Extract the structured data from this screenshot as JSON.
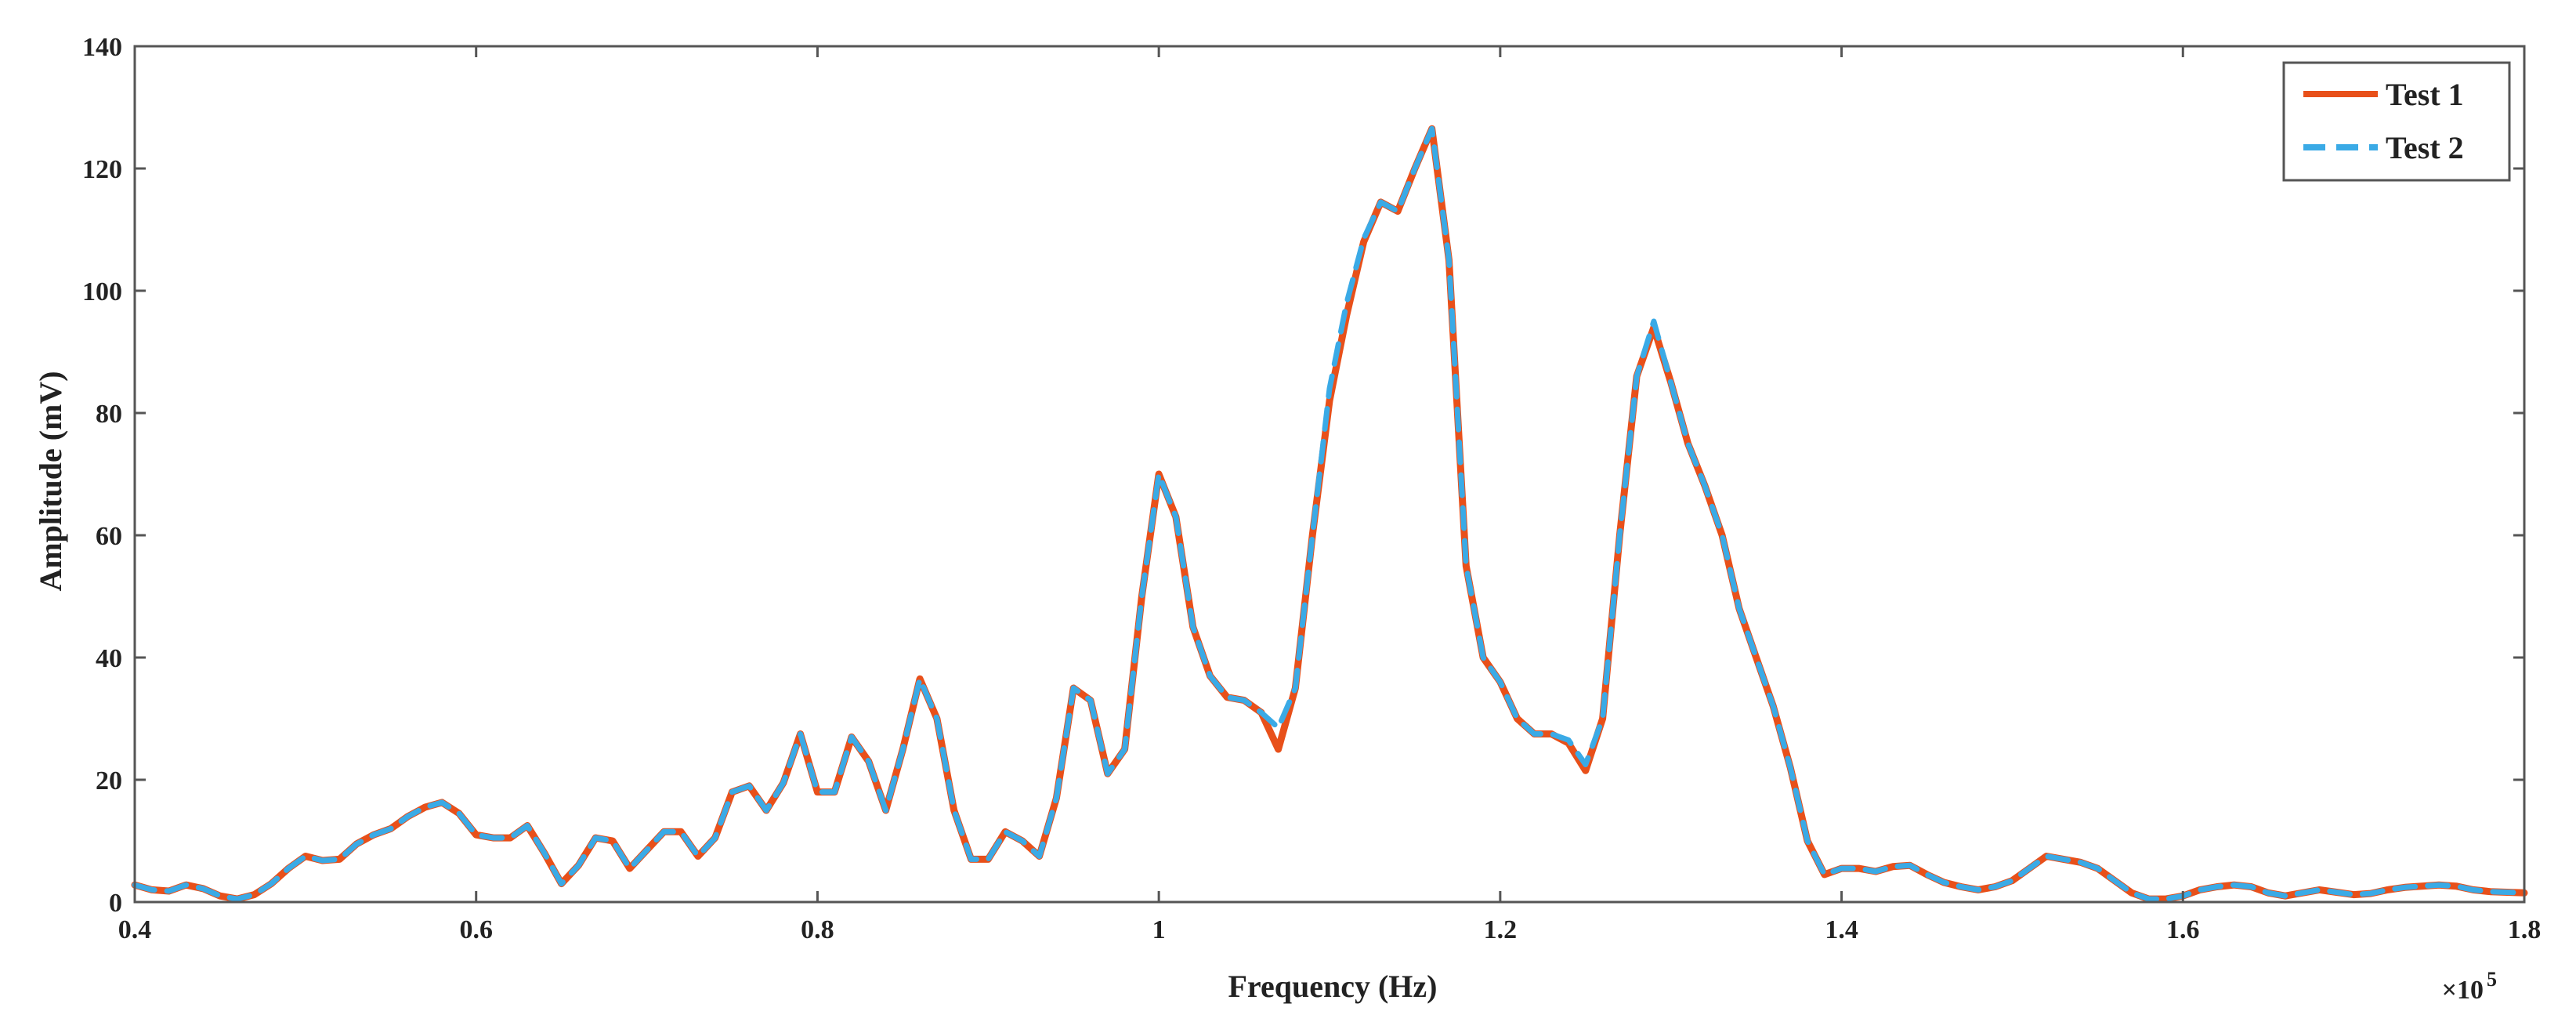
{
  "chart_data": {
    "type": "line",
    "title": "",
    "xlabel": "Frequency (Hz)",
    "ylabel": "Amplitude (mV)",
    "x_multiplier_base": "×10",
    "x_multiplier_exp": "5",
    "xlim": [
      0.4,
      1.8
    ],
    "ylim": [
      0,
      140
    ],
    "x_ticks": [
      0.4,
      0.6,
      0.8,
      1,
      1.2,
      1.4,
      1.6,
      1.8
    ],
    "x_tick_labels": [
      "0.4",
      "0.6",
      "0.8",
      "1",
      "1.2",
      "1.4",
      "1.6",
      "1.8"
    ],
    "y_ticks": [
      0,
      20,
      40,
      60,
      80,
      100,
      120,
      140
    ],
    "y_tick_labels": [
      "0",
      "20",
      "40",
      "60",
      "80",
      "100",
      "120",
      "140"
    ],
    "grid": false,
    "legend_position": "top-right",
    "series": [
      {
        "name": "Test 1",
        "color": "#e8501a",
        "style": "solid",
        "x": [
          0.4,
          0.41,
          0.42,
          0.43,
          0.44,
          0.45,
          0.46,
          0.47,
          0.48,
          0.49,
          0.5,
          0.51,
          0.52,
          0.53,
          0.54,
          0.55,
          0.56,
          0.57,
          0.58,
          0.59,
          0.6,
          0.61,
          0.62,
          0.63,
          0.64,
          0.65,
          0.66,
          0.67,
          0.68,
          0.69,
          0.7,
          0.71,
          0.72,
          0.73,
          0.74,
          0.75,
          0.76,
          0.77,
          0.78,
          0.79,
          0.8,
          0.81,
          0.82,
          0.83,
          0.84,
          0.85,
          0.86,
          0.87,
          0.88,
          0.89,
          0.9,
          0.91,
          0.92,
          0.93,
          0.94,
          0.95,
          0.96,
          0.97,
          0.98,
          0.99,
          1.0,
          1.01,
          1.02,
          1.03,
          1.04,
          1.05,
          1.06,
          1.07,
          1.08,
          1.09,
          1.1,
          1.11,
          1.12,
          1.13,
          1.14,
          1.15,
          1.16,
          1.17,
          1.18,
          1.19,
          1.2,
          1.21,
          1.22,
          1.23,
          1.24,
          1.25,
          1.26,
          1.27,
          1.28,
          1.29,
          1.3,
          1.31,
          1.32,
          1.33,
          1.34,
          1.35,
          1.36,
          1.37,
          1.38,
          1.39,
          1.4,
          1.41,
          1.42,
          1.43,
          1.44,
          1.45,
          1.46,
          1.47,
          1.48,
          1.49,
          1.5,
          1.51,
          1.52,
          1.53,
          1.54,
          1.55,
          1.56,
          1.57,
          1.58,
          1.59,
          1.6,
          1.61,
          1.62,
          1.63,
          1.64,
          1.65,
          1.66,
          1.67,
          1.68,
          1.69,
          1.7,
          1.71,
          1.72,
          1.73,
          1.74,
          1.75,
          1.76,
          1.77,
          1.78,
          1.79,
          1.8
        ],
        "y": [
          2.8,
          2.0,
          1.8,
          2.8,
          2.2,
          1.0,
          0.5,
          1.2,
          3.0,
          5.5,
          7.5,
          6.8,
          7.0,
          9.5,
          11.0,
          12.0,
          14.0,
          15.5,
          16.3,
          14.5,
          11.0,
          10.5,
          10.5,
          12.5,
          8.0,
          3.0,
          6.0,
          10.5,
          10.0,
          5.5,
          8.5,
          11.5,
          11.5,
          7.5,
          10.5,
          18.0,
          19.0,
          15.0,
          19.5,
          27.5,
          18.0,
          18.0,
          27.0,
          23.0,
          15.0,
          25.0,
          36.5,
          30.0,
          15.0,
          7.0,
          7.0,
          11.5,
          10.0,
          7.5,
          17.0,
          35.0,
          33.0,
          21.0,
          25.0,
          50.0,
          70.0,
          63.0,
          45.0,
          37.0,
          33.5,
          33.0,
          31.0,
          25.0,
          35.0,
          60.0,
          82.0,
          96.0,
          108.0,
          114.5,
          113.0,
          120.0,
          126.5,
          105.0,
          55.0,
          40.0,
          36.0,
          30.0,
          27.5,
          27.5,
          26.0,
          21.5,
          30.0,
          60.0,
          86.0,
          94.0,
          85.0,
          75.0,
          68.0,
          60.0,
          48.0,
          40.0,
          32.0,
          22.0,
          10.0,
          4.5,
          5.5,
          5.5,
          5.0,
          5.8,
          6.0,
          4.5,
          3.2,
          2.5,
          2.0,
          2.5,
          3.5,
          5.5,
          7.5,
          7.0,
          6.5,
          5.5,
          3.5,
          1.5,
          0.5,
          0.5,
          1.0,
          2.0,
          2.5,
          2.8,
          2.5,
          1.5,
          1.0,
          1.5,
          2.0,
          1.6,
          1.2,
          1.4,
          2.0,
          2.4,
          2.6,
          2.8,
          2.6,
          2.0,
          1.7,
          1.6,
          1.5
        ]
      },
      {
        "name": "Test 2",
        "color": "#3aaae6",
        "style": "dashed",
        "x": [
          0.4,
          0.41,
          0.42,
          0.43,
          0.44,
          0.45,
          0.46,
          0.47,
          0.48,
          0.49,
          0.5,
          0.51,
          0.52,
          0.53,
          0.54,
          0.55,
          0.56,
          0.57,
          0.58,
          0.59,
          0.6,
          0.61,
          0.62,
          0.63,
          0.64,
          0.65,
          0.66,
          0.67,
          0.68,
          0.69,
          0.7,
          0.71,
          0.72,
          0.73,
          0.74,
          0.75,
          0.76,
          0.77,
          0.78,
          0.79,
          0.8,
          0.81,
          0.82,
          0.83,
          0.84,
          0.85,
          0.86,
          0.87,
          0.88,
          0.89,
          0.9,
          0.91,
          0.92,
          0.93,
          0.94,
          0.95,
          0.96,
          0.97,
          0.98,
          0.99,
          1.0,
          1.01,
          1.02,
          1.03,
          1.04,
          1.05,
          1.06,
          1.07,
          1.08,
          1.09,
          1.1,
          1.11,
          1.12,
          1.13,
          1.14,
          1.15,
          1.16,
          1.17,
          1.18,
          1.19,
          1.2,
          1.21,
          1.22,
          1.23,
          1.24,
          1.25,
          1.26,
          1.27,
          1.28,
          1.29,
          1.3,
          1.31,
          1.32,
          1.33,
          1.34,
          1.35,
          1.36,
          1.37,
          1.38,
          1.39,
          1.4,
          1.41,
          1.42,
          1.43,
          1.44,
          1.45,
          1.46,
          1.47,
          1.48,
          1.49,
          1.5,
          1.51,
          1.52,
          1.53,
          1.54,
          1.55,
          1.56,
          1.57,
          1.58,
          1.59,
          1.6,
          1.61,
          1.62,
          1.63,
          1.64,
          1.65,
          1.66,
          1.67,
          1.68,
          1.69,
          1.7,
          1.71,
          1.72,
          1.73,
          1.74,
          1.75,
          1.76,
          1.77,
          1.78,
          1.79,
          1.8
        ],
        "y": [
          2.8,
          2.0,
          1.8,
          2.8,
          2.2,
          1.0,
          0.5,
          1.2,
          3.0,
          5.5,
          7.5,
          6.8,
          7.0,
          9.5,
          11.0,
          12.0,
          14.0,
          15.5,
          16.3,
          14.5,
          11.0,
          10.5,
          10.5,
          12.5,
          8.0,
          3.0,
          6.0,
          10.5,
          10.0,
          5.5,
          8.5,
          11.5,
          11.5,
          7.5,
          10.5,
          18.0,
          19.0,
          15.0,
          19.5,
          27.5,
          18.0,
          18.0,
          27.0,
          23.0,
          15.0,
          25.0,
          36.5,
          30.0,
          15.0,
          7.0,
          7.0,
          11.5,
          10.0,
          7.5,
          17.0,
          35.0,
          33.0,
          21.0,
          25.0,
          50.0,
          70.0,
          63.0,
          45.0,
          37.0,
          33.5,
          33.0,
          31.0,
          28.5,
          35.0,
          60.0,
          84.0,
          98.0,
          108.5,
          114.5,
          113.0,
          120.0,
          126.5,
          105.0,
          55.0,
          40.0,
          36.0,
          30.0,
          27.5,
          27.5,
          26.5,
          22.5,
          30.0,
          60.0,
          86.0,
          95.0,
          85.0,
          75.0,
          68.0,
          60.0,
          48.0,
          40.0,
          32.0,
          22.0,
          10.0,
          4.5,
          5.5,
          5.5,
          5.0,
          5.8,
          6.0,
          4.5,
          3.2,
          2.5,
          2.0,
          2.5,
          3.5,
          5.5,
          7.5,
          7.0,
          6.5,
          5.5,
          3.5,
          1.5,
          0.5,
          0.5,
          1.0,
          2.0,
          2.5,
          2.8,
          2.5,
          1.5,
          1.0,
          1.5,
          2.0,
          1.6,
          1.2,
          1.4,
          2.0,
          2.4,
          2.6,
          2.8,
          2.6,
          2.0,
          1.7,
          1.6,
          1.5
        ]
      }
    ]
  }
}
